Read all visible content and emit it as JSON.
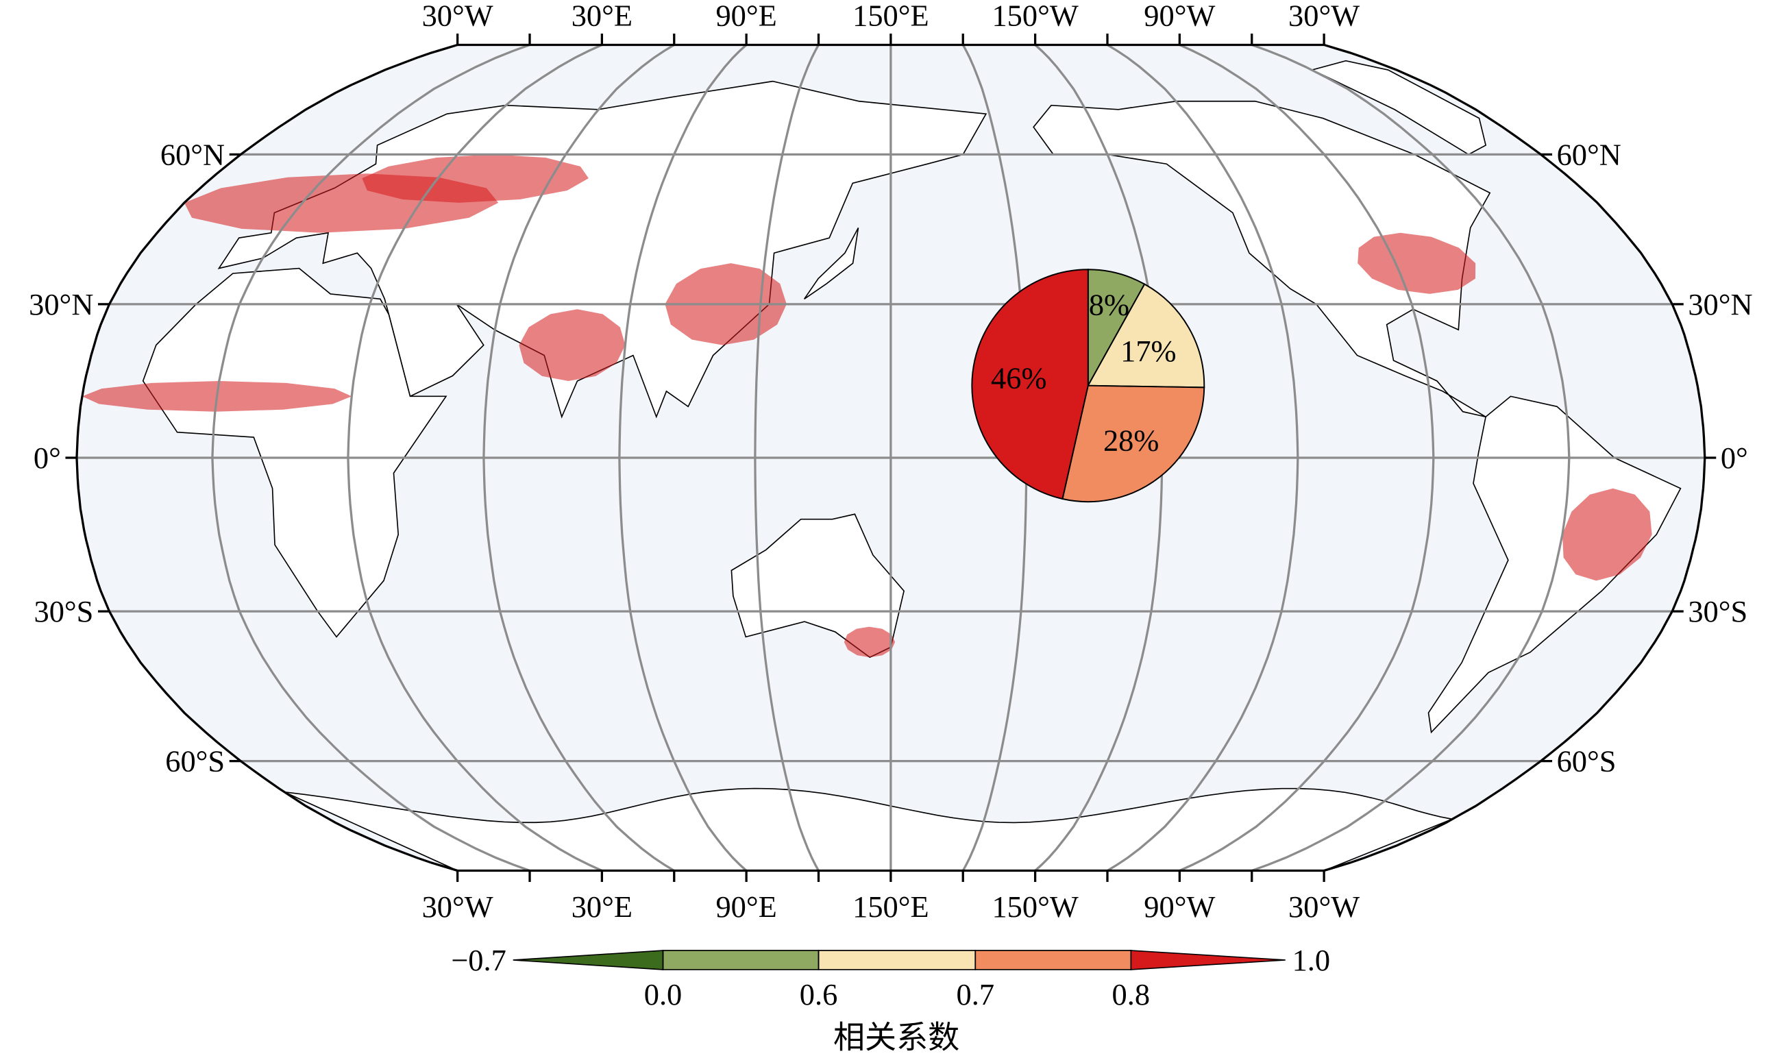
{
  "map": {
    "lon_labels": [
      "30°W",
      "30°E",
      "90°E",
      "150°E",
      "150°W",
      "90°W",
      "30°W"
    ],
    "lat_labels": [
      "60°N",
      "30°N",
      "0°",
      "30°S",
      "60°S"
    ]
  },
  "chart_data": {
    "type": "pie",
    "values": [
      8,
      17,
      28,
      46
    ],
    "value_labels": [
      "8%",
      "17%",
      "28%",
      "46%"
    ],
    "colors": [
      "#8fa862",
      "#f7e4b2",
      "#f08c60",
      "#d6191b"
    ]
  },
  "colorbar": {
    "ticks": [
      {
        "value": -0.7,
        "label": "−0.7"
      },
      {
        "value": 0,
        "label": "0.0"
      },
      0.6,
      0.7,
      0.8,
      {
        "value": 1,
        "label": "1.0"
      }
    ],
    "colors": [
      "#3d6b1e",
      "#8fa862",
      "#f7e4b2",
      "#f08c60",
      "#d6191b"
    ],
    "label": "相关系数"
  }
}
